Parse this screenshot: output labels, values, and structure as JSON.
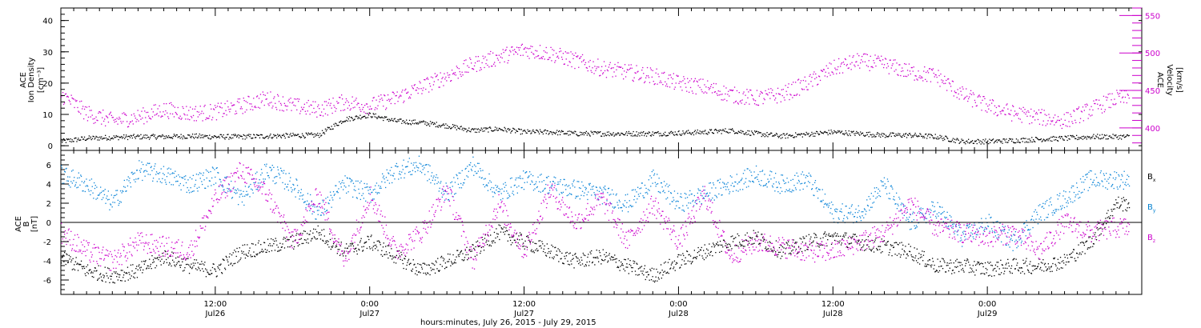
{
  "colors": {
    "axis": "#000000",
    "magenta": "#cc00cc",
    "blue": "#0a84d8",
    "black": "#000000"
  },
  "chart_data": [
    {
      "type": "scatter",
      "ylabel_left": [
        "ACE",
        "Ion Density",
        "[cm⁻³]"
      ],
      "ylabel_right": [
        "ACE",
        "Velocity",
        "[km/s]"
      ],
      "ylim_left": [
        -1.5,
        44
      ],
      "yticks_left": [
        0,
        10,
        20,
        30,
        40
      ],
      "ylim_right": [
        370,
        560
      ],
      "yticks_right": [
        400,
        450,
        500,
        550
      ],
      "xlim_hours": [
        0,
        84
      ],
      "series": [
        {
          "color": "#000000",
          "axis": "left",
          "x_hours": [
            0,
            2,
            4,
            6,
            8,
            10,
            12,
            14,
            16,
            18,
            20,
            22,
            24,
            26,
            28,
            30,
            32,
            34,
            36,
            38,
            40,
            42,
            44,
            46,
            48,
            50,
            52,
            54,
            56,
            58,
            60,
            62,
            64,
            66,
            68,
            70,
            72,
            74,
            76,
            78,
            80,
            82
          ],
          "values": [
            1.5,
            2.5,
            2.8,
            3.0,
            3.0,
            3.2,
            3.0,
            3.0,
            3.2,
            3.4,
            3.5,
            8.5,
            10.0,
            8.0,
            7.5,
            6.5,
            5.0,
            5.5,
            4.5,
            4.5,
            4.0,
            4.0,
            4.0,
            4.0,
            4.2,
            4.5,
            5.0,
            4.0,
            3.2,
            3.8,
            4.5,
            4.0,
            3.5,
            3.5,
            3.0,
            1.5,
            1.5,
            1.8,
            2.2,
            2.5,
            3.0,
            3.0
          ]
        },
        {
          "color": "#cc00cc",
          "axis": "right",
          "x_hours": [
            0,
            2,
            4,
            6,
            8,
            10,
            12,
            14,
            16,
            18,
            20,
            22,
            24,
            26,
            28,
            30,
            32,
            34,
            36,
            38,
            40,
            42,
            44,
            46,
            48,
            50,
            52,
            54,
            56,
            58,
            60,
            62,
            64,
            66,
            68,
            70,
            72,
            74,
            76,
            78,
            80,
            82
          ],
          "values": [
            445,
            420,
            410,
            415,
            425,
            420,
            422,
            430,
            440,
            430,
            425,
            435,
            430,
            440,
            455,
            470,
            485,
            495,
            505,
            500,
            490,
            480,
            475,
            470,
            460,
            455,
            445,
            440,
            445,
            460,
            480,
            490,
            485,
            475,
            470,
            445,
            430,
            420,
            415,
            410,
            425,
            440
          ]
        }
      ]
    },
    {
      "type": "scatter",
      "ylabel_left": [
        "ACE",
        "B",
        "[nT]"
      ],
      "ylim_left": [
        -7.5,
        7.5
      ],
      "yticks_left": [
        -6,
        -4,
        -2,
        0,
        2,
        4,
        6
      ],
      "zero_line": true,
      "xlim_hours": [
        0,
        84
      ],
      "legend": [
        "B",
        "B",
        "B"
      ],
      "legend_sub": [
        "x",
        "y",
        "z"
      ],
      "legend_position": "right",
      "series": [
        {
          "name": "Bx",
          "color": "#000000",
          "x_hours": [
            0,
            2,
            4,
            6,
            8,
            10,
            12,
            14,
            16,
            18,
            20,
            22,
            24,
            26,
            28,
            30,
            32,
            34,
            36,
            38,
            40,
            42,
            44,
            46,
            48,
            50,
            52,
            54,
            56,
            58,
            60,
            62,
            64,
            66,
            68,
            70,
            72,
            74,
            76,
            78,
            80,
            82
          ],
          "values": [
            -3.5,
            -5.0,
            -5.5,
            -5.0,
            -3.5,
            -4.5,
            -5.0,
            -3.0,
            -2.5,
            -2.0,
            -1.0,
            -3.0,
            -2.0,
            -3.5,
            -5.0,
            -4.0,
            -3.0,
            -1.0,
            -2.0,
            -3.0,
            -4.0,
            -3.5,
            -4.5,
            -5.5,
            -4.0,
            -3.0,
            -2.0,
            -1.5,
            -3.0,
            -2.0,
            -1.5,
            -2.0,
            -2.5,
            -3.0,
            -4.5,
            -4.5,
            -4.8,
            -4.5,
            -4.5,
            -4.0,
            -2.0,
            2.0
          ]
        },
        {
          "name": "By",
          "color": "#0a84d8",
          "x_hours": [
            0,
            2,
            4,
            6,
            8,
            10,
            12,
            14,
            16,
            18,
            20,
            22,
            24,
            26,
            28,
            30,
            32,
            34,
            36,
            38,
            40,
            42,
            44,
            46,
            48,
            50,
            52,
            54,
            56,
            58,
            60,
            62,
            64,
            66,
            68,
            70,
            72,
            74,
            76,
            78,
            80,
            82
          ],
          "values": [
            5.0,
            4.0,
            2.0,
            5.5,
            5.0,
            4.0,
            5.0,
            2.5,
            5.5,
            4.0,
            1.0,
            4.0,
            3.0,
            5.5,
            6.0,
            3.0,
            6.0,
            3.0,
            4.5,
            4.0,
            3.5,
            3.0,
            2.0,
            4.5,
            2.0,
            3.0,
            4.0,
            5.0,
            4.0,
            4.5,
            1.0,
            1.0,
            4.0,
            0.0,
            1.5,
            -1.5,
            0.0,
            -2.0,
            1.0,
            2.5,
            4.5,
            4.5
          ]
        },
        {
          "name": "Bz",
          "color": "#cc00cc",
          "x_hours": [
            0,
            2,
            4,
            6,
            8,
            10,
            12,
            14,
            16,
            18,
            20,
            22,
            24,
            26,
            28,
            30,
            32,
            34,
            36,
            38,
            40,
            42,
            44,
            46,
            48,
            50,
            52,
            54,
            56,
            58,
            60,
            62,
            64,
            66,
            68,
            70,
            72,
            74,
            76,
            78,
            80,
            82
          ],
          "values": [
            -1.0,
            -3.0,
            -4.0,
            -2.0,
            -2.5,
            -3.0,
            2.5,
            5.5,
            3.0,
            -2.0,
            3.0,
            -4.0,
            3.0,
            -3.0,
            -1.0,
            3.5,
            -4.0,
            2.0,
            -3.0,
            3.5,
            0.0,
            2.5,
            -2.0,
            2.0,
            -2.0,
            3.0,
            -3.5,
            -2.0,
            -2.5,
            -3.0,
            -3.0,
            -2.0,
            -1.0,
            2.0,
            -0.5,
            -1.0,
            -1.5,
            -1.0,
            -3.0,
            0.0,
            -1.0,
            -0.5
          ]
        }
      ]
    }
  ],
  "x_axis": {
    "ticks": [
      {
        "time": "12:00",
        "date": "Jul26",
        "hours": 12
      },
      {
        "time": "0:00",
        "date": "Jul27",
        "hours": 24
      },
      {
        "time": "12:00",
        "date": "Jul27",
        "hours": 36
      },
      {
        "time": "0:00",
        "date": "Jul28",
        "hours": 48
      },
      {
        "time": "12:00",
        "date": "Jul28",
        "hours": 60
      },
      {
        "time": "0:00",
        "date": "Jul29",
        "hours": 72
      }
    ],
    "xlabel": "hours:minutes, July 26, 2015 - July 29, 2015"
  }
}
